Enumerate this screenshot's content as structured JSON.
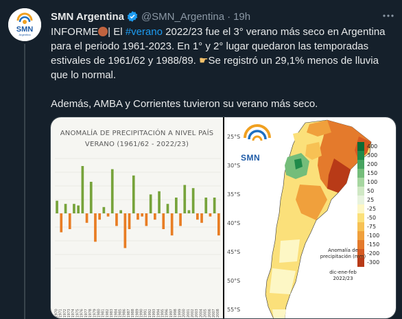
{
  "tweet": {
    "author_name": "SMN Argentina",
    "handle": "@SMN_Argentina",
    "separator": "·",
    "time": "19h",
    "avatar_text": "SMN",
    "avatar_subtext": "Argentina",
    "text_line1_a": "INFORME",
    "text_line1_b": "| El ",
    "text_hashtag": "#verano",
    "text_line1_c": " 2022/23 fue el 3° verano más seco en Argentina",
    "text_line2": "para el periodo 1961-2023. En 1° y 2° lugar quedaron las temporadas",
    "text_line3": "estivales de 1961/62 y 1988/89. ",
    "text_line3_b": "Se registró un 29,1% menos de lluvia",
    "text_line4": "que lo normal.",
    "text_line5": "Además, AMBA y Corrientes tuvieron su verano más seco.",
    "icons": {
      "verified": "verified-badge-icon",
      "more": "more-options-icon",
      "emoji1": "brown-circle-emoji",
      "emoji2": "pointing-hand-emoji"
    }
  },
  "chart_data": {
    "type": "bar",
    "title": "ANOMALÍA DE PRECIPITACIÓN A NIVEL PAÍS",
    "subtitle": "VERANO (1961/62 - 2022/23)",
    "xlabel": "",
    "ylabel": "",
    "categories": [
      "1970",
      "1971",
      "1972",
      "1973",
      "1974",
      "1975",
      "1976",
      "1977",
      "1978",
      "1979",
      "1980",
      "1981",
      "1982",
      "1983",
      "1984",
      "1985",
      "1986",
      "1987",
      "1988",
      "1989",
      "1990",
      "1991",
      "1992",
      "1993",
      "1994",
      "1995",
      "1996",
      "1997",
      "1998",
      "1999",
      "2000",
      "2001",
      "2002",
      "2003",
      "2004",
      "2005",
      "2006",
      "2007",
      "2008"
    ],
    "values": [
      8,
      -12,
      6,
      -10,
      6,
      5,
      30,
      -6,
      20,
      -18,
      -4,
      4,
      -2,
      28,
      -8,
      2,
      -22,
      -10,
      24,
      -4,
      -2,
      -8,
      12,
      -4,
      14,
      -10,
      6,
      -14,
      10,
      -8,
      18,
      2,
      16,
      -4,
      -6,
      10,
      -2,
      10,
      -14
    ],
    "colors": {
      "positive": "#77a33b",
      "negative": "#e87d24"
    }
  },
  "map": {
    "logo_text": "SMN",
    "latitudes": [
      "25°S",
      "30°S",
      "35°S",
      "40°S",
      "45°S",
      "50°S",
      "55°S"
    ],
    "legend_values": [
      "400",
      "300",
      "200",
      "150",
      "100",
      "50",
      "25",
      "-25",
      "-50",
      "-75",
      "-100",
      "-150",
      "-200",
      "-300"
    ],
    "legend_colors": [
      "#0a6b35",
      "#1f8a4a",
      "#47a460",
      "#74bd7a",
      "#a6d6a0",
      "#cfe8c4",
      "#e8f3de",
      "#fdf7c5",
      "#fbe07a",
      "#f7c154",
      "#f0a03c",
      "#e47a2c",
      "#d55a22",
      "#b83a17"
    ],
    "note_title": "Anomalía de",
    "note_title2": "precipitación (mm)",
    "note_period": "dic-ene-feb",
    "note_season": "2022/23"
  }
}
